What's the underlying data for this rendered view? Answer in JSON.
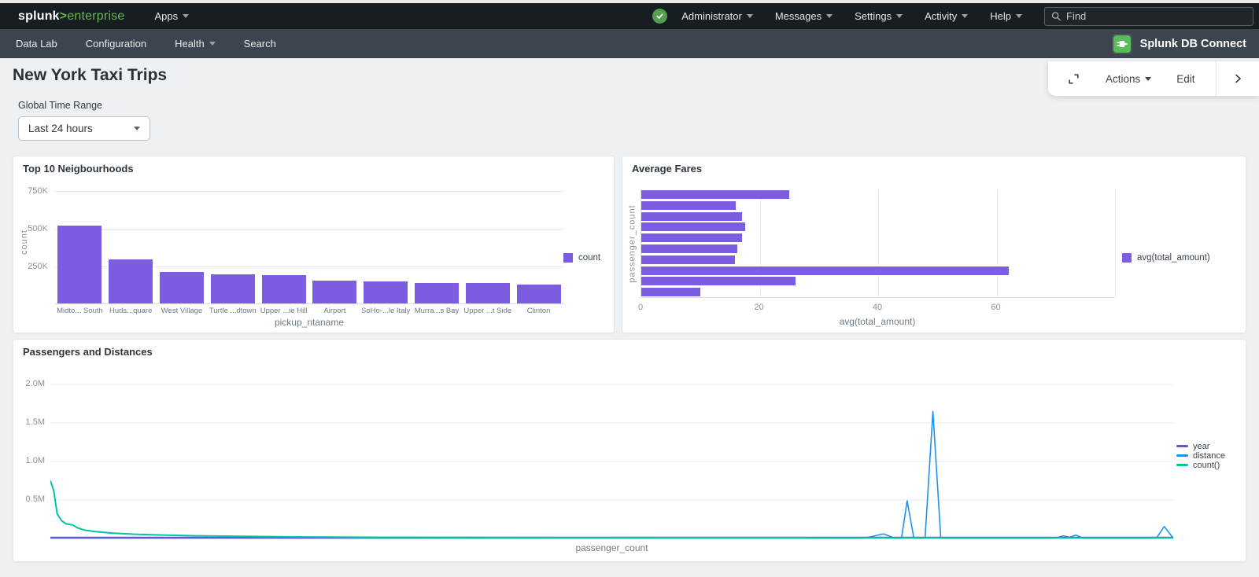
{
  "topnav": {
    "logo": {
      "brand": "splunk",
      "gt": ">",
      "product": "enterprise"
    },
    "apps": "Apps",
    "user": "Administrator",
    "messages": "Messages",
    "settings": "Settings",
    "activity": "Activity",
    "help": "Help",
    "find_placeholder": "Find"
  },
  "appnav": {
    "item1": "Data Lab",
    "item2": "Configuration",
    "item3": "Health",
    "item4": "Search",
    "app_name": "Splunk DB Connect"
  },
  "toolbar": {
    "actions": "Actions",
    "edit": "Edit"
  },
  "page": {
    "title": "New York Taxi Trips",
    "time_range_label": "Global Time Range",
    "time_range_value": "Last 24 hours"
  },
  "colors": {
    "bar_purple": "#7c5ce0",
    "line_purple": "#6d52cc",
    "line_blue": "#1e93ee",
    "line_teal": "#00c5a2",
    "splunk_green": "#69b946",
    "success_green": "#53a051",
    "app_icon_green": "#58bd58"
  },
  "chart_data": [
    {
      "type": "bar",
      "title": "Top 10 Neigbourhoods",
      "xlabel": "pickup_ntaname",
      "ylabel": "count",
      "legend": [
        "count"
      ],
      "grid": true,
      "legend_position": "right",
      "yticks": [
        {
          "label": "750K",
          "value": 750
        },
        {
          "label": "500K",
          "value": 500
        },
        {
          "label": "250K",
          "value": 250
        }
      ],
      "ylim_thousands": [
        0,
        825
      ],
      "categories": [
        "Midto... South",
        "Huds...quare",
        "West Village",
        "Turtle ...dtown",
        "Upper ...ie Hill",
        "Airport",
        "SoHo-...le Italy",
        "Murra...s Bay",
        "Upper ...t Side",
        "Clinton"
      ],
      "values_thousands": [
        515,
        290,
        207,
        193,
        188,
        150,
        146,
        136,
        134,
        124
      ]
    },
    {
      "type": "bar",
      "orientation": "horizontal",
      "title": "Average Fares",
      "xlabel": "avg(total_amount)",
      "ylabel": "passenger_count",
      "legend": [
        "avg(total_amount)"
      ],
      "grid": true,
      "legend_position": "right",
      "xticks": [
        {
          "label": "0",
          "value": 0
        },
        {
          "label": "20",
          "value": 20
        },
        {
          "label": "40",
          "value": 40
        },
        {
          "label": "60",
          "value": 60
        }
      ],
      "gridline_values": [
        20,
        40,
        60,
        80
      ],
      "xlim": [
        0,
        80
      ],
      "values": [
        25,
        16,
        17,
        17.5,
        17,
        16.2,
        15.8,
        62,
        26,
        10
      ]
    },
    {
      "type": "line",
      "title": "Passengers and Distances",
      "xlabel": "passenger_count",
      "grid": true,
      "legend_position": "right",
      "yticks": [
        {
          "label": "2.0M",
          "value": 2.0
        },
        {
          "label": "1.5M",
          "value": 1.5
        },
        {
          "label": "1.0M",
          "value": 1.0
        },
        {
          "label": "0.5M",
          "value": 0.5
        }
      ],
      "ylim_millions": [
        0,
        2.18
      ],
      "x_axis_unit": "fraction_of_plot_width",
      "series": [
        {
          "name": "year",
          "color": "#6d52cc",
          "points": [
            [
              0,
              0.012
            ],
            [
              1,
              0.012
            ]
          ]
        },
        {
          "name": "distance",
          "color": "#1e93ee",
          "points": [
            [
              0,
              0.004
            ],
            [
              0.725,
              0.004
            ],
            [
              0.742,
              0.06
            ],
            [
              0.752,
              0.004
            ],
            [
              0.758,
              0.004
            ],
            [
              0.763,
              0.49
            ],
            [
              0.769,
              0.004
            ],
            [
              0.779,
              0.004
            ],
            [
              0.786,
              1.65
            ],
            [
              0.793,
              0.004
            ],
            [
              0.895,
              0.004
            ],
            [
              0.902,
              0.035
            ],
            [
              0.908,
              0.015
            ],
            [
              0.913,
              0.045
            ],
            [
              0.92,
              0.004
            ],
            [
              0.985,
              0.004
            ],
            [
              0.992,
              0.155
            ],
            [
              1,
              0.004
            ]
          ]
        },
        {
          "name": "count()",
          "color": "#00c5a2",
          "points": [
            [
              0,
              0.75
            ],
            [
              0.003,
              0.62
            ],
            [
              0.006,
              0.32
            ],
            [
              0.01,
              0.23
            ],
            [
              0.014,
              0.19
            ],
            [
              0.02,
              0.175
            ],
            [
              0.024,
              0.14
            ],
            [
              0.03,
              0.11
            ],
            [
              0.04,
              0.09
            ],
            [
              0.055,
              0.07
            ],
            [
              0.075,
              0.055
            ],
            [
              0.1,
              0.045
            ],
            [
              0.13,
              0.035
            ],
            [
              0.17,
              0.028
            ],
            [
              0.22,
              0.02
            ],
            [
              0.3,
              0.014
            ],
            [
              0.45,
              0.01
            ],
            [
              0.7,
              0.008
            ],
            [
              1,
              0.008
            ]
          ]
        }
      ]
    }
  ]
}
